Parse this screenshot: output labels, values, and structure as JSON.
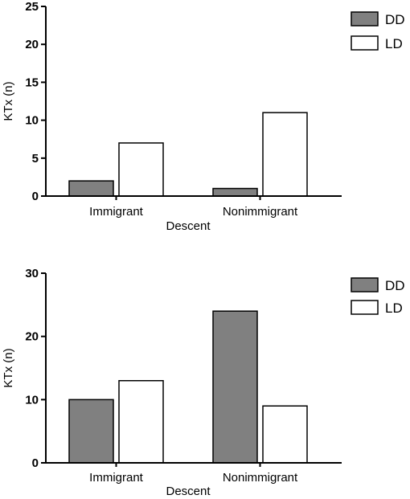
{
  "chart_data": [
    {
      "type": "bar",
      "title": "",
      "xlabel": "Descent",
      "ylabel": "KTx  (n)",
      "ylim": [
        0,
        25
      ],
      "yticks": [
        0,
        5,
        10,
        15,
        20,
        25
      ],
      "categories": [
        "Immigrant",
        "Nonimmigrant"
      ],
      "series": [
        {
          "name": "DD",
          "values": [
            2,
            1
          ],
          "color": "#808080"
        },
        {
          "name": "LD",
          "values": [
            7,
            11
          ],
          "color": "#ffffff"
        }
      ],
      "grid": false,
      "legend_position": "top-right"
    },
    {
      "type": "bar",
      "title": "",
      "xlabel": "Descent",
      "ylabel": "KTx  (n)",
      "ylim": [
        0,
        30
      ],
      "yticks": [
        0,
        10,
        20,
        30
      ],
      "categories": [
        "Immigrant",
        "Nonimmigrant"
      ],
      "series": [
        {
          "name": "DD",
          "values": [
            10,
            24
          ],
          "color": "#808080"
        },
        {
          "name": "LD",
          "values": [
            13,
            9
          ],
          "color": "#ffffff"
        }
      ],
      "grid": false,
      "legend_position": "top-right"
    }
  ]
}
